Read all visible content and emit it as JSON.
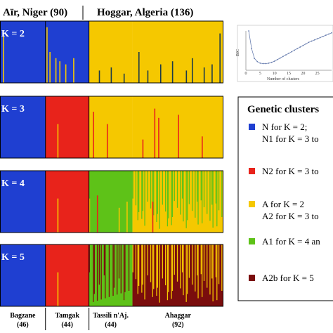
{
  "headers": [
    {
      "text": "Aïr, Niger (90)"
    },
    {
      "text": "Hoggar, Algeria (136)"
    }
  ],
  "populations": [
    {
      "name": "Bagzane",
      "n": "(46)",
      "count": 46
    },
    {
      "name": "Tamgak",
      "n": "(44)",
      "count": 44
    },
    {
      "name": "Tassili n'Aj.",
      "n": "(44)",
      "count": 44
    },
    {
      "name": "Ahaggar",
      "n": "(92)",
      "count": 92
    }
  ],
  "legend": {
    "title": "Genetic clusters",
    "items": [
      {
        "color": "#1f3fd1",
        "lines": [
          "N for K = 2;",
          "N1 for K = 3 to"
        ]
      },
      {
        "color": "#e8231b",
        "lines": [
          "N2 for K = 3 to"
        ]
      },
      {
        "color": "#f5c800",
        "lines": [
          "A for K = 2",
          "A2 for K = 3 to"
        ]
      },
      {
        "color": "#5ec218",
        "lines": [
          "A1 for K = 4 an"
        ]
      },
      {
        "color": "#7a0d0d",
        "lines": [
          "A2b for K = 5"
        ]
      }
    ]
  },
  "colors": {
    "N1": "#1f3fd1",
    "N2": "#e8231b",
    "A2": "#f5c800",
    "A1": "#5ec218",
    "A2b": "#7a0d0d",
    "spike": "#1b3a4a"
  },
  "chart_data": [
    {
      "type": "bar",
      "subtype": "stacked-admixture",
      "individuals": 226,
      "panels": [
        {
          "label": "K = 2",
          "groups": [
            {
              "population": "Bagzane",
              "base": "N1",
              "spikes": [
                {
                  "i": 3,
                  "c": "A2",
                  "f": 0.75
                }
              ]
            },
            {
              "population": "Tamgak",
              "base": "N1",
              "spikes": [
                {
                  "i": 1,
                  "c": "A2",
                  "f": 0.9
                },
                {
                  "i": 4,
                  "c": "A2",
                  "f": 0.5
                },
                {
                  "i": 10,
                  "c": "A2",
                  "f": 0.4
                },
                {
                  "i": 14,
                  "c": "A2",
                  "f": 0.35
                },
                {
                  "i": 20,
                  "c": "A2",
                  "f": 0.3
                },
                {
                  "i": 28,
                  "c": "A2",
                  "f": 0.4
                }
              ]
            },
            {
              "population": "Tassili n'Aj.",
              "base": "A2",
              "spikes": [
                {
                  "i": 10,
                  "c": "N1",
                  "f": 0.2
                },
                {
                  "i": 22,
                  "c": "N1",
                  "f": 0.25
                },
                {
                  "i": 35,
                  "c": "N1",
                  "f": 0.15
                }
              ]
            },
            {
              "population": "Ahaggar",
              "base": "A2",
              "spikes": [
                {
                  "i": 6,
                  "c": "N1",
                  "f": 0.5
                },
                {
                  "i": 15,
                  "c": "N1",
                  "f": 0.2
                },
                {
                  "i": 28,
                  "c": "N1",
                  "f": 0.3
                },
                {
                  "i": 40,
                  "c": "N1",
                  "f": 0.35
                },
                {
                  "i": 54,
                  "c": "N1",
                  "f": 0.2
                },
                {
                  "i": 60,
                  "c": "N1",
                  "f": 0.4
                },
                {
                  "i": 72,
                  "c": "N1",
                  "f": 0.25
                },
                {
                  "i": 80,
                  "c": "N1",
                  "f": 0.3
                },
                {
                  "i": 88,
                  "c": "N1",
                  "f": 0.8
                }
              ]
            }
          ]
        },
        {
          "label": "K = 3",
          "groups": [
            {
              "population": "Bagzane",
              "base": "N1",
              "spikes": []
            },
            {
              "population": "Tamgak",
              "base": "N2",
              "spikes": [
                {
                  "i": 12,
                  "c": "A2",
                  "f": 0.55
                }
              ]
            },
            {
              "population": "Tassili n'Aj.",
              "base": "A2",
              "spikes": [
                {
                  "i": 4,
                  "c": "N2",
                  "f": 0.75
                },
                {
                  "i": 18,
                  "c": "N2",
                  "f": 0.55
                }
              ]
            },
            {
              "population": "Ahaggar",
              "base": "A2",
              "spikes": [
                {
                  "i": 10,
                  "c": "N2",
                  "f": 0.3
                },
                {
                  "i": 22,
                  "c": "N2",
                  "f": 0.8
                },
                {
                  "i": 26,
                  "c": "N2",
                  "f": 0.65
                },
                {
                  "i": 46,
                  "c": "N2",
                  "f": 0.7
                },
                {
                  "i": 70,
                  "c": "N2",
                  "f": 0.35
                }
              ]
            }
          ]
        },
        {
          "label": "K = 4",
          "groups": [
            {
              "population": "Bagzane",
              "base": "N1",
              "spikes": []
            },
            {
              "population": "Tamgak",
              "base": "N2",
              "spikes": [
                {
                  "i": 12,
                  "c": "A2",
                  "f": 0.55
                }
              ]
            },
            {
              "population": "Tassili n'Aj.",
              "base": "A1",
              "spikes": [
                {
                  "i": 0,
                  "c": "A2",
                  "f": 0.55
                },
                {
                  "i": 8,
                  "c": "N2",
                  "f": 0.6
                },
                {
                  "i": 30,
                  "c": "A2",
                  "f": 0.4
                },
                {
                  "i": 38,
                  "c": "A2",
                  "f": 0.5
                }
              ]
            },
            {
              "population": "Ahaggar",
              "base": "A2",
              "banded": "A1",
              "period": 3,
              "spikes": [
                {
                  "i": 20,
                  "c": "N2",
                  "f": 0.5
                }
              ]
            }
          ]
        },
        {
          "label": "K = 5",
          "groups": [
            {
              "population": "Bagzane",
              "base": "N1",
              "spikes": []
            },
            {
              "population": "Tamgak",
              "base": "N2",
              "spikes": [
                {
                  "i": 12,
                  "c": "A2",
                  "f": 0.55
                }
              ]
            },
            {
              "population": "Tassili n'Aj.",
              "base": "A1",
              "banded": "A2b",
              "period": 4,
              "spikes": []
            },
            {
              "population": "Ahaggar",
              "base": "A2b",
              "banded": "A2",
              "period": 3,
              "spikes": []
            }
          ]
        }
      ]
    },
    {
      "type": "line",
      "xlabel": "Number of clusters",
      "ylabel": "BIC",
      "x": [
        1,
        2,
        3,
        4,
        5,
        6,
        7,
        8,
        9,
        10,
        11,
        12,
        13,
        14,
        15,
        16,
        17,
        18,
        19,
        20,
        21,
        22,
        23,
        24,
        25,
        26,
        27,
        28,
        29,
        30
      ],
      "y": [
        1.0,
        0.55,
        0.3,
        0.22,
        0.18,
        0.17,
        0.17,
        0.18,
        0.2,
        0.23,
        0.27,
        0.31,
        0.35,
        0.39,
        0.43,
        0.47,
        0.51,
        0.55,
        0.59,
        0.63,
        0.67,
        0.71,
        0.74,
        0.77,
        0.8,
        0.83,
        0.86,
        0.89,
        0.92,
        0.95
      ],
      "xticks": [
        0,
        5,
        10,
        15,
        20,
        25
      ]
    }
  ]
}
